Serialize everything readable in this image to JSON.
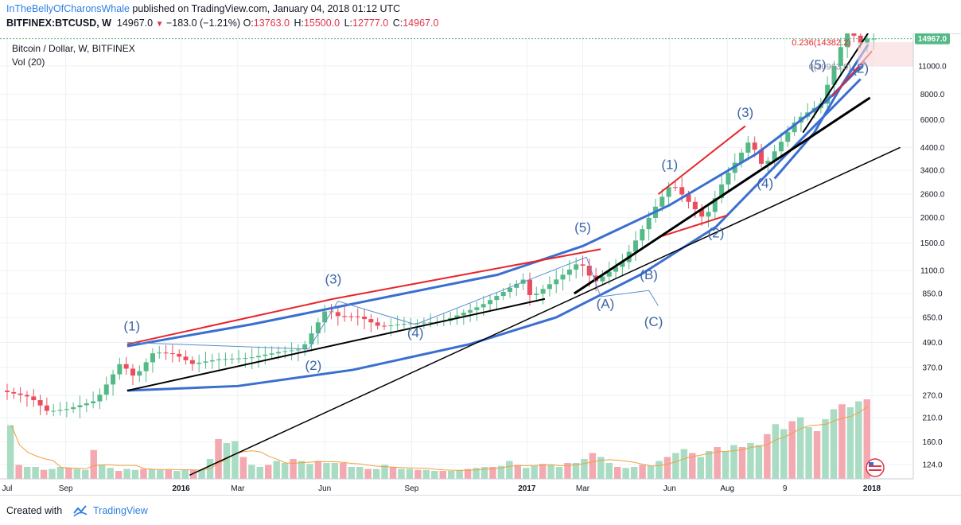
{
  "header": {
    "author": "InTheBellyOfCharonsWhale",
    "published_text": "published on TradingView.com, January 04, 2018 01:12 UTC",
    "symbol": "BITFINEX:BTCUSD, W",
    "last_price": "14967.0",
    "change": "−183.0 (−1.21%)",
    "open_label": "O:",
    "open": "13763.0",
    "high_label": "H:",
    "high": "15500.0",
    "low_label": "L:",
    "low": "12777.0",
    "close_label": "C:",
    "close": "14967.0"
  },
  "chart_pane": {
    "title": "Bitcoin / Dollar, W, BITFINEX",
    "volume_label": "Vol (20)"
  },
  "footer": {
    "created_with": "Created with",
    "brand": "TradingView"
  },
  "colors": {
    "up": "#53b987",
    "down": "#eb4d5c",
    "up_vol": "#a9dcc3",
    "down_vol": "#f4a8b0",
    "arc": "#3a6fd0",
    "red_line": "#e8242b",
    "black_line": "#000000",
    "wave_path": "#5b8fd0",
    "vol_ma": "#f0a040",
    "price_tag": "#53b987"
  },
  "chart_data": {
    "type": "candlestick",
    "scale": "log",
    "title": "Bitcoin / Dollar, W, BITFINEX",
    "current_price": 14967.0,
    "y_ticks": [
      124.0,
      160.0,
      210.0,
      270.0,
      370.0,
      490.0,
      650.0,
      850.0,
      1100.0,
      1500.0,
      2000.0,
      2600.0,
      3400.0,
      4400.0,
      6000.0,
      8000.0,
      11000.0
    ],
    "x_labels": [
      "Jul",
      "Sep",
      "2016",
      "Mar",
      "Jun",
      "Sep",
      "2017",
      "Mar",
      "Jun",
      "Aug",
      "9",
      "2018"
    ],
    "x_label_dates": [
      "2015-07-01",
      "2015-09-01",
      "2016-01-01",
      "2016-03-01",
      "2016-06-01",
      "2016-09-01",
      "2017-01-01",
      "2017-03-01",
      "2017-06-01",
      "2017-08-01",
      "2017-10-01",
      "2018-01-01"
    ],
    "bold_x_labels": [
      "2016",
      "2017",
      "2018"
    ],
    "price_path": [
      [
        "2015-07-01",
        285
      ],
      [
        "2015-08-01",
        265
      ],
      [
        "2015-08-20",
        225
      ],
      [
        "2015-09-10",
        232
      ],
      [
        "2015-10-10",
        255
      ],
      [
        "2015-11-05",
        390
      ],
      [
        "2015-11-20",
        330
      ],
      [
        "2015-12-10",
        440
      ],
      [
        "2016-01-01",
        430
      ],
      [
        "2016-01-20",
        385
      ],
      [
        "2016-02-15",
        405
      ],
      [
        "2016-03-20",
        412
      ],
      [
        "2016-04-20",
        440
      ],
      [
        "2016-05-15",
        455
      ],
      [
        "2016-06-10",
        720
      ],
      [
        "2016-06-20",
        660
      ],
      [
        "2016-07-15",
        655
      ],
      [
        "2016-08-05",
        585
      ],
      [
        "2016-09-01",
        605
      ],
      [
        "2016-10-10",
        620
      ],
      [
        "2016-11-20",
        740
      ],
      [
        "2016-12-20",
        900
      ],
      [
        "2017-01-05",
        1000
      ],
      [
        "2017-01-12",
        810
      ],
      [
        "2017-02-15",
        1050
      ],
      [
        "2017-03-05",
        1220
      ],
      [
        "2017-03-20",
        960
      ],
      [
        "2017-04-20",
        1220
      ],
      [
        "2017-05-25",
        2300
      ],
      [
        "2017-06-10",
        2950
      ],
      [
        "2017-07-15",
        1950
      ],
      [
        "2017-08-05",
        3100
      ],
      [
        "2017-09-01",
        4800
      ],
      [
        "2017-09-15",
        3500
      ],
      [
        "2017-10-20",
        6000
      ],
      [
        "2017-11-15",
        7200
      ],
      [
        "2017-12-17",
        19000
      ],
      [
        "2017-12-22",
        13500
      ],
      [
        "2018-01-01",
        14967
      ]
    ],
    "volume": {
      "label": "Vol (20)",
      "values": [
        54,
        14,
        12,
        12,
        9,
        10,
        12,
        11,
        10,
        9,
        29,
        14,
        11,
        8,
        10,
        9,
        10,
        10,
        9,
        9,
        8,
        9,
        9,
        9,
        20,
        40,
        36,
        38,
        22,
        14,
        12,
        14,
        18,
        16,
        20,
        18,
        15,
        18,
        16,
        16,
        16,
        12,
        12,
        10,
        10,
        14,
        12,
        10,
        10,
        9,
        9,
        8,
        8,
        8,
        9,
        10,
        11,
        12,
        12,
        13,
        18,
        14,
        11,
        13,
        15,
        14,
        12,
        16,
        16,
        20,
        26,
        22,
        16,
        12,
        11,
        12,
        14,
        13,
        18,
        22,
        26,
        30,
        26,
        22,
        28,
        32,
        28,
        34,
        32,
        36,
        34,
        45,
        55,
        50,
        58,
        62,
        52,
        48,
        60,
        70,
        75,
        72,
        78,
        80
      ]
    },
    "wave_labels": [
      {
        "text": "(1)",
        "date": "2015-11-10",
        "price": 560
      },
      {
        "text": "(2)",
        "date": "2016-05-20",
        "price": 360
      },
      {
        "text": "(3)",
        "date": "2016-06-10",
        "price": 950
      },
      {
        "text": "(4)",
        "date": "2016-09-05",
        "price": 520
      },
      {
        "text": "(5)",
        "date": "2017-03-01",
        "price": 1700
      },
      {
        "text": "(A)",
        "date": "2017-03-25",
        "price": 720
      },
      {
        "text": "(B)",
        "date": "2017-05-10",
        "price": 1000
      },
      {
        "text": "(C)",
        "date": "2017-05-15",
        "price": 590
      },
      {
        "text": "(1)",
        "date": "2017-06-01",
        "price": 3450
      },
      {
        "text": "(2)",
        "date": "2017-07-20",
        "price": 1600
      },
      {
        "text": "(3)",
        "date": "2017-08-20",
        "price": 6200
      },
      {
        "text": "(4)",
        "date": "2017-09-10",
        "price": 2800
      },
      {
        "text": "(5)",
        "date": "2017-11-05",
        "price": 10600
      },
      {
        "text": "(2)",
        "date": "2017-12-20",
        "price": 10200
      }
    ],
    "fib_labels": [
      {
        "text": "0.236(14382.2)",
        "price": 14382.2
      },
      {
        "text": "0(10963.0)",
        "price": 10963.0
      }
    ],
    "grid": true
  }
}
